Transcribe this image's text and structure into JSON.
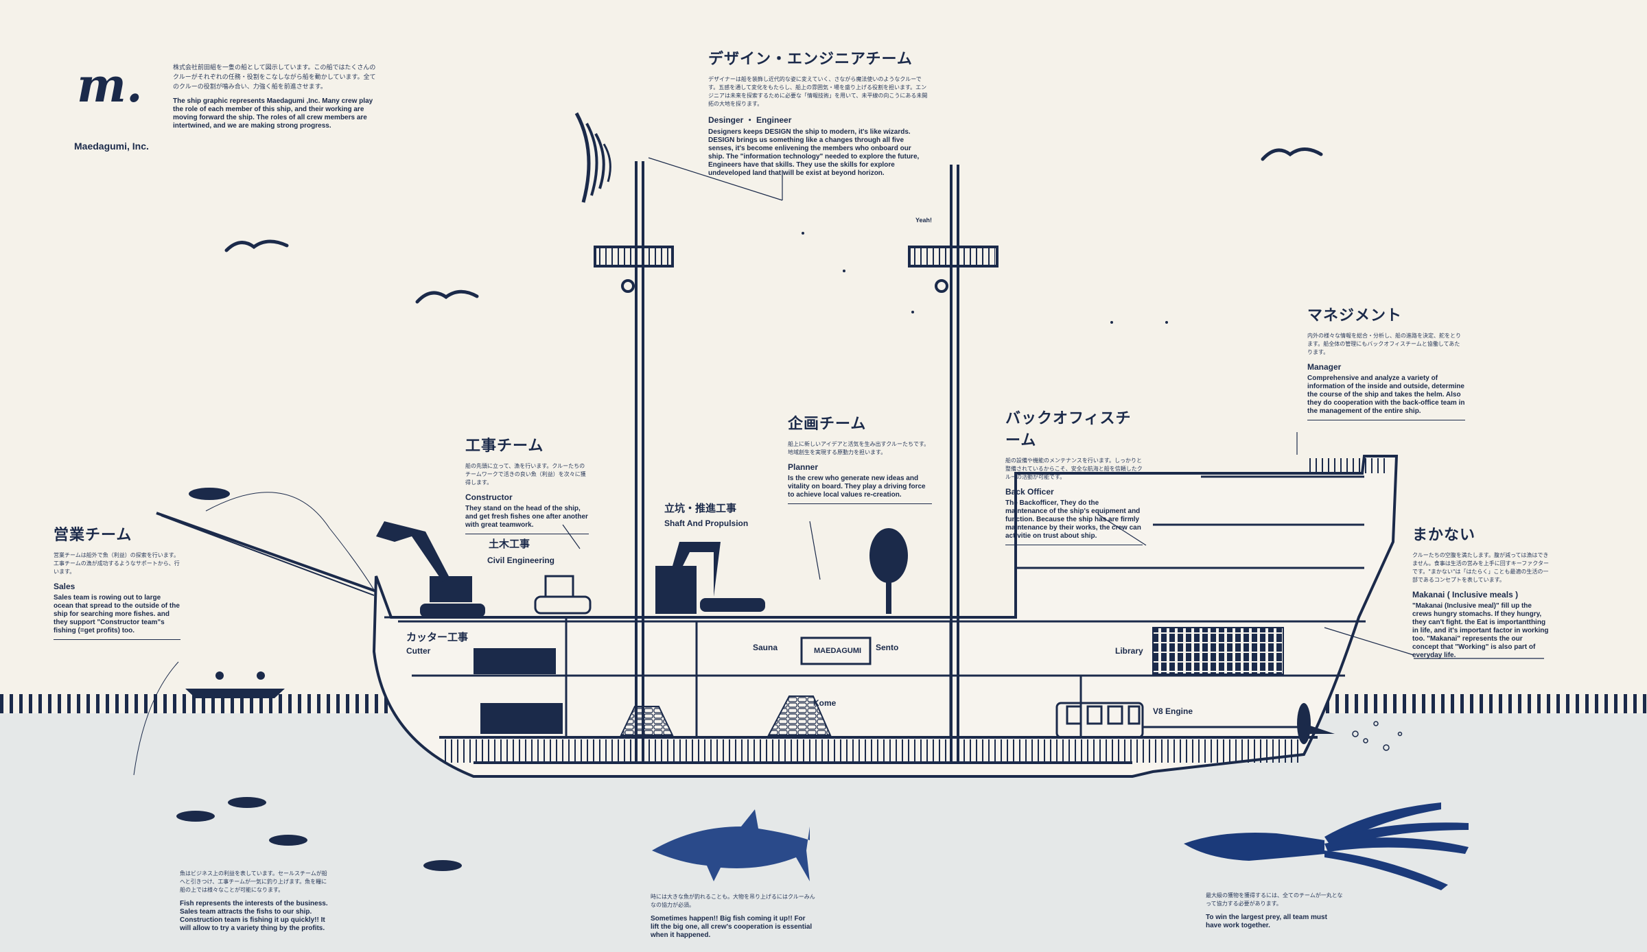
{
  "brand": {
    "logo_mark": "m.",
    "company_name": "Maedagumi, Inc.",
    "intro_jp": "株式会社前田組を一隻の船として図示しています。この船ではたくさんのクルーがそれぞれの任務・役割をこなしながら船を動かしています。全てのクルーの役割が噛み合い、力強く船を前進させます。",
    "intro_en": "The ship graphic represents Maedagumi ,Inc. Many crew play the role of each member of this ship, and their working are moving forward the ship. The roles of all crew members are intertwined, and we are making strong progress."
  },
  "teams": {
    "design": {
      "title_jp": "デザイン・エンジニアチーム",
      "desc_jp": "デザイナーは船を装飾し近代的な姿に変えていく、さながら魔法使いのようなクルーです。五感を通して変化をもたらし、船上の雰囲気・場を盛り上げる役割を担います。エンジニアは未来を探索するために必要な「情報技術」を用いて、未平線の向こうにある未開拓の大地を探ります。",
      "title_en": "Desinger ・ Engineer",
      "desc_en": "Designers keeps DESIGN the ship to modern, it's like wizards. DESIGN brings us something like a changes through all five senses, it's become enlivening the members who onboard our ship. The \"information technology\" needed to explore the future, Engineers have that skills. They use the skills for explore undeveloped land that will be exist at beyond horizon."
    },
    "management": {
      "title_jp": "マネジメント",
      "desc_jp": "内外の様々な情報を総合・分析し、船の進路を決定、舵をとります。船全体の管理にもバックオフィスチームと協働してあたります。",
      "title_en": "Manager",
      "desc_en": "Comprehensive and analyze a variety of information of the inside and outside, determine the course of the ship and takes the helm. Also they do cooperation with the back-office team in the management of the entire ship."
    },
    "construction": {
      "title_jp": "工事チーム",
      "desc_jp": "船の先頭に立って、漁を行います。クルーたちのチームワークで活きの良い魚（利益）を次々に獲得します。",
      "title_en": "Constructor",
      "desc_en": "They stand on the head of the ship, and get fresh fishes one after another with great teamwork."
    },
    "planning": {
      "title_jp": "企画チーム",
      "desc_jp": "船上に新しいアイデアと活気を生み出すクルーたちです。地域創生を実現する原動力を担います。",
      "title_en": "Planner",
      "desc_en": "Is the crew who generate new ideas and vitality on board. They play a driving force to achieve local values re-creation."
    },
    "backoffice": {
      "title_jp": "バックオフィスチーム",
      "desc_jp": "船の設備や機能のメンテナンスを行います。しっかりと整備されているからこそ、安全な航海と船を信頼したクルーの活動が可能です。",
      "title_en": "Back Officer",
      "desc_en": "The Backofficer, They do the maintenance of the ship's equipment and function. Because the ship has are firmly maintenance by their works, the crew can activitie on trust about ship."
    },
    "sales": {
      "title_jp": "営業チーム",
      "desc_jp": "営業チームは船外で魚（利益）の探索を行います。工事チームの漁が成功するようなサポートから、行います。",
      "title_en": "Sales",
      "desc_en": "Sales team is rowing out to large ocean that spread to the outside of the ship for searching more fishes. and they support \"Constructor team\"s fishing (=get profits) too."
    },
    "makanai": {
      "title_jp": "まかない",
      "desc_jp": "クルーたちの空腹を満たします。腹が減っては漁はできません。食事は生活の営みを上手に回すキーファクターです。\"まかない\"は「はたらく」ことも最適の生活の一部であるコンセプトを表しています。",
      "title_en": "Makanai ( Inclusive meals )",
      "desc_en": "\"Makanai (Inclusive meal)\" fill up the crews hungry stomachs. If they hungry, they can't fight. the Eat is importantthing in life, and it's important factor in working too. \"Makanai\" represents the our concept that \"Working\" is also part of everyday life."
    }
  },
  "ship_labels": {
    "civil_jp": "土木工事",
    "civil_en": "Civil Engineering",
    "shaft_jp": "立坑・推進工事",
    "shaft_en": "Shaft And Propulsion",
    "cutter_jp": "カッター工事",
    "cutter_en": "Cutter",
    "sauna": "Sauna",
    "sento": "Sento",
    "sign": "MAEDAGUMI",
    "kome": "Kome",
    "library": "Library",
    "engine": "V8 Engine",
    "yeah": "Yeah!"
  },
  "sea_notes": {
    "fish_jp": "魚はビジネス上の利益を表しています。セールスチームが船へと引きつけ、工事チームが一気に釣り上げます。魚を糧に船の上では様々なことが可能になります。",
    "fish_en": "Fish represents the interests of the business. Sales team attracts the fishs to our ship. Construction team is fishing it up quickly!! It will allow to try a variety thing by the profits.",
    "shark_jp": "時には大きな魚が釣れることも。大物を吊り上げるにはクルーみんなの協力が必須。",
    "shark_en": "Sometimes happen!! Big fish coming it up!! For lift the big one, all crew's cooperation is essential when it happened.",
    "squid_jp": "最大級の獲物を獲得するには、全てのチームが一丸となって協力する必要があります。",
    "squid_en": "To win the largest prey, all team must have work together."
  },
  "colors": {
    "background": "#f5f2ea",
    "sea": "#e5e8e8",
    "ink": "#1b2a4a",
    "fish_blue": "#2a4a8a"
  }
}
